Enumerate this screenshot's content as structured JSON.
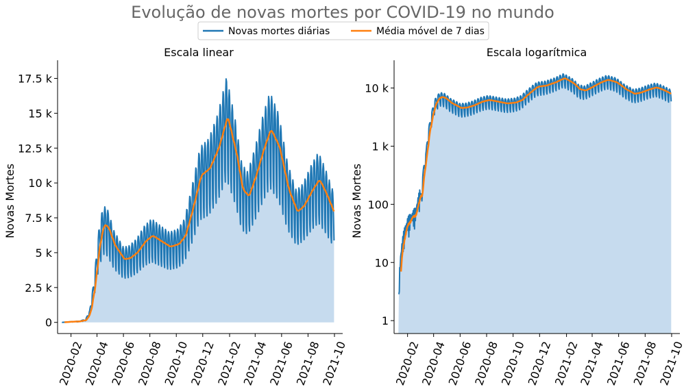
{
  "title": "Evolução de novas mortes por COVID-19 no mundo",
  "colors": {
    "daily": "#1f77b4",
    "ma7": "#ff7f0e",
    "fill": "#c6dbee",
    "axis": "#000000",
    "title": "#666666"
  },
  "legend": {
    "placement": "top-center",
    "items": [
      {
        "label": "Novas mortes diárias",
        "color": "#1f77b4"
      },
      {
        "label": "Média móvel de 7 dias",
        "color": "#ff7f0e"
      }
    ]
  },
  "chart_data": [
    {
      "type": "line",
      "title": "Escala linear",
      "ylabel": "Novas Mortes",
      "yscale": "linear",
      "ylim": [
        -800,
        18800
      ],
      "yticks": [
        0,
        2500,
        5000,
        7500,
        10000,
        12500,
        15000,
        17500
      ],
      "ytick_labels": [
        "0",
        "2.5 k",
        "5 k",
        "7.5 k",
        "10 k",
        "12.5 k",
        "15 k",
        "17.5 k"
      ],
      "xticks": [
        "2020-02",
        "2020-04",
        "2020-06",
        "2020-08",
        "2020-10",
        "2020-12",
        "2021-02",
        "2021-04",
        "2021-06",
        "2021-08",
        "2021-10"
      ],
      "area_under": "Novas mortes diárias",
      "grid": false
    },
    {
      "type": "line",
      "title": "Escala logarítmica",
      "ylabel": "Novas Mortes",
      "yscale": "log",
      "ylim": [
        0.6,
        30000
      ],
      "yticks": [
        1,
        10,
        100,
        1000,
        10000
      ],
      "ytick_labels": [
        "1",
        "10",
        "100",
        "1 k",
        "10 k"
      ],
      "xticks": [
        "2020-02",
        "2020-04",
        "2020-06",
        "2020-08",
        "2020-10",
        "2020-12",
        "2021-02",
        "2021-04",
        "2021-06",
        "2021-08",
        "2021-10"
      ],
      "area_under": "Novas mortes diárias",
      "grid": false
    }
  ],
  "series_source": {
    "x_range": [
      "2020-01-11",
      "2021-09-30"
    ],
    "ma7_anchors": [
      [
        "2020-01-11",
        0
      ],
      [
        "2020-02-01",
        40
      ],
      [
        "2020-02-20",
        60
      ],
      [
        "2020-03-05",
        150
      ],
      [
        "2020-03-15",
        700
      ],
      [
        "2020-03-25",
        2500
      ],
      [
        "2020-04-05",
        5500
      ],
      [
        "2020-04-15",
        7000
      ],
      [
        "2020-04-25",
        6800
      ],
      [
        "2020-05-10",
        5500
      ],
      [
        "2020-06-01",
        4500
      ],
      [
        "2020-06-15",
        4600
      ],
      [
        "2020-07-01",
        5000
      ],
      [
        "2020-07-20",
        5800
      ],
      [
        "2020-08-05",
        6200
      ],
      [
        "2020-08-25",
        5800
      ],
      [
        "2020-09-15",
        5400
      ],
      [
        "2020-10-05",
        5600
      ],
      [
        "2020-10-20",
        6200
      ],
      [
        "2020-11-05",
        8000
      ],
      [
        "2020-11-25",
        10500
      ],
      [
        "2020-12-15",
        11000
      ],
      [
        "2021-01-05",
        12500
      ],
      [
        "2021-01-25",
        14700
      ],
      [
        "2021-02-15",
        12000
      ],
      [
        "2021-03-01",
        9500
      ],
      [
        "2021-03-15",
        9000
      ],
      [
        "2021-04-01",
        10500
      ],
      [
        "2021-04-20",
        12500
      ],
      [
        "2021-05-05",
        13800
      ],
      [
        "2021-05-25",
        12500
      ],
      [
        "2021-06-15",
        9500
      ],
      [
        "2021-07-05",
        7900
      ],
      [
        "2021-07-20",
        8300
      ],
      [
        "2021-08-10",
        9500
      ],
      [
        "2021-08-25",
        10200
      ],
      [
        "2021-09-10",
        9200
      ],
      [
        "2021-09-30",
        7700
      ]
    ],
    "daily_amplitude": 0.3
  }
}
